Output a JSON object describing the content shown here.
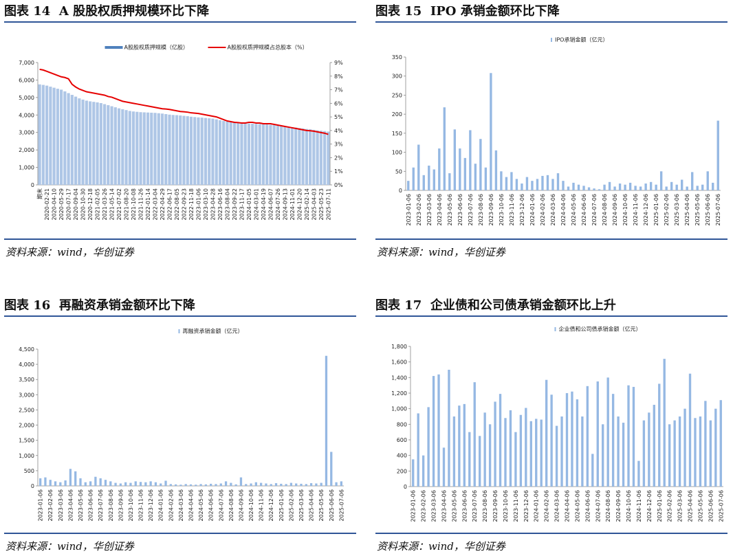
{
  "chart_data": [
    {
      "type": "bar",
      "title": "图表 14  A 股股权质押规模环比下降",
      "source": "资料来源：wind，华创证券",
      "categories": [
        "期末",
        null,
        "2020-02-21",
        null,
        "2020-04-10",
        null,
        "2020-05-29",
        null,
        "2020-07-17",
        null,
        "2020-09-04",
        null,
        "2020-10-30",
        null,
        "2020-12-18",
        null,
        "2021-02-05",
        null,
        "2021-03-26",
        null,
        "2021-05-14",
        null,
        "2021-07-02",
        null,
        "2021-08-20",
        null,
        "2021-10-08",
        null,
        "2021-11-26",
        null,
        "2022-01-14",
        null,
        "2022-03-04",
        null,
        "2022-04-29",
        null,
        "2022-06-17",
        null,
        "2022-08-05",
        null,
        "2022-09-23",
        null,
        "2022-11-18",
        null,
        "2023-01-06",
        null,
        "2023-03-10",
        null,
        "2023-04-28",
        null,
        "2023-06-16",
        null,
        "2023-08-04",
        null,
        "2023-09-22",
        null,
        "2023-11-17",
        null,
        "2024-01-05",
        null,
        "2024-03-01",
        null,
        "2024-04-19",
        null,
        "2024-06-07",
        null,
        "2024-07-26",
        null,
        "2024-09-13",
        null,
        "2024-11-01",
        null,
        "2024-12-20",
        null,
        "2025-02-14",
        null,
        "2025-04-03",
        null,
        "2025-05-23",
        null,
        "2025-07-11"
      ],
      "series": [
        {
          "name": "A股股权质押规模（亿股）",
          "color": "#aec6e6",
          "legend_color": "#4f81bd",
          "values": [
            5750,
            5720,
            5680,
            5620,
            5560,
            5500,
            5450,
            5350,
            5250,
            5150,
            5050,
            4950,
            4880,
            4820,
            4780,
            4750,
            4720,
            4680,
            4620,
            4560,
            4500,
            4440,
            4380,
            4330,
            4280,
            4230,
            4200,
            4180,
            4160,
            4150,
            4140,
            4130,
            4120,
            4100,
            4080,
            4050,
            4020,
            4000,
            3990,
            3970,
            3950,
            3930,
            3900,
            3880,
            3860,
            3850,
            3830,
            3810,
            3790,
            3750,
            3700,
            3660,
            3620,
            3600,
            3580,
            3560,
            3540,
            3520,
            3510,
            3500,
            3490,
            3480,
            3470,
            3460,
            3440,
            3420,
            3400,
            3380,
            3350,
            3320,
            3300,
            3280,
            3250,
            3230,
            3200,
            3180,
            3150,
            3120,
            3100,
            3080,
            3050
          ]
        },
        {
          "name": "A股股权质押规模占总股本（%）",
          "color": "#e60000",
          "kind": "line",
          "axis": "y2",
          "values": [
            8.5,
            8.45,
            8.35,
            8.25,
            8.15,
            8.05,
            7.95,
            7.9,
            7.8,
            7.4,
            7.2,
            7.05,
            6.95,
            6.85,
            6.8,
            6.75,
            6.7,
            6.65,
            6.6,
            6.5,
            6.45,
            6.35,
            6.25,
            6.15,
            6.1,
            6.05,
            6.0,
            5.95,
            5.9,
            5.85,
            5.8,
            5.75,
            5.7,
            5.65,
            5.6,
            5.58,
            5.55,
            5.5,
            5.45,
            5.4,
            5.38,
            5.35,
            5.3,
            5.28,
            5.25,
            5.2,
            5.15,
            5.1,
            5.05,
            5.0,
            4.9,
            4.8,
            4.7,
            4.65,
            4.6,
            4.58,
            4.55,
            4.55,
            4.6,
            4.6,
            4.55,
            4.55,
            4.5,
            4.5,
            4.5,
            4.45,
            4.4,
            4.35,
            4.3,
            4.25,
            4.2,
            4.15,
            4.1,
            4.05,
            4.0,
            3.98,
            3.95,
            3.9,
            3.85,
            3.8,
            3.72
          ]
        }
      ],
      "ylim": [
        0,
        7000
      ],
      "yticks": [
        0,
        {
          "value": 1000,
          "label": "1,000"
        },
        {
          "value": 2000,
          "label": "2,000"
        },
        {
          "value": 3000,
          "label": "3,000"
        },
        {
          "value": 4000,
          "label": "4,000"
        },
        {
          "value": 5000,
          "label": "5,000"
        },
        {
          "value": 6000,
          "label": "6,000"
        },
        {
          "value": 7000,
          "label": "7,000"
        }
      ],
      "y2lim": [
        0,
        9
      ],
      "y2ticks": [
        {
          "value": 0,
          "label": "0%"
        },
        {
          "value": 1,
          "label": "1%"
        },
        {
          "value": 2,
          "label": "2%"
        },
        {
          "value": 3,
          "label": "3%"
        },
        {
          "value": 4,
          "label": "4%"
        },
        {
          "value": 5,
          "label": "5%"
        },
        {
          "value": 6,
          "label": "6%"
        },
        {
          "value": 7,
          "label": "7%"
        },
        {
          "value": 8,
          "label": "8%"
        },
        {
          "value": 9,
          "label": "9%"
        }
      ],
      "legend": "top"
    },
    {
      "type": "bar",
      "title": "图表 15  IPO 承销金额环比下降",
      "source": "资料来源：wind，华创证券",
      "categories": [
        "2023-01-06",
        null,
        "2023-02-06",
        null,
        "2023-03-06",
        null,
        "2023-04-06",
        null,
        "2023-05-06",
        null,
        "2023-06-06",
        null,
        "2023-07-06",
        null,
        "2023-08-06",
        null,
        "2023-09-06",
        null,
        "2023-10-06",
        null,
        "2023-11-06",
        null,
        "2023-12-06",
        null,
        "2024-01-06",
        null,
        "2024-02-06",
        null,
        "2024-03-06",
        null,
        "2024-04-06",
        null,
        "2024-05-06",
        null,
        "2024-06-06",
        null,
        "2024-07-06",
        null,
        "2024-08-06",
        null,
        "2024-09-06",
        null,
        "2024-10-06",
        null,
        "2024-11-06",
        null,
        "2024-12-06",
        null,
        "2025-01-06",
        null,
        "2025-02-06",
        null,
        "2025-03-06",
        null,
        "2025-04-06",
        null,
        "2025-05-06",
        null,
        "2025-06-06",
        null,
        "2025-07-06"
      ],
      "series": [
        {
          "name": "IPO承销金额（亿元）",
          "color": "#95b8e3",
          "values": [
            25,
            60,
            120,
            40,
            65,
            55,
            110,
            218,
            45,
            160,
            110,
            85,
            158,
            70,
            135,
            60,
            308,
            105,
            50,
            35,
            48,
            30,
            18,
            35,
            25,
            30,
            38,
            40,
            30,
            45,
            25,
            10,
            20,
            15,
            12,
            8,
            5,
            3,
            15,
            22,
            10,
            18,
            15,
            20,
            12,
            10,
            18,
            22,
            15,
            50,
            10,
            22,
            15,
            28,
            10,
            48,
            12,
            15,
            50,
            20,
            183
          ]
        }
      ],
      "ylim": [
        0,
        350
      ],
      "yticks": [
        0,
        50,
        100,
        150,
        200,
        250,
        300,
        350
      ],
      "legend": "top"
    },
    {
      "type": "bar",
      "title": "图表 16  再融资承销金额环比下降",
      "source": "资料来源：wind，华创证券",
      "categories": [
        "2023-01-06",
        null,
        "2023-02-06",
        null,
        "2023-03-06",
        null,
        "2023-04-06",
        null,
        "2023-05-06",
        null,
        "2023-06-06",
        null,
        "2023-07-06",
        null,
        "2023-08-06",
        null,
        "2023-09-06",
        null,
        "2023-10-06",
        null,
        "2023-11-06",
        null,
        "2023-12-06",
        null,
        "2024-01-06",
        null,
        "2024-02-06",
        null,
        "2024-03-06",
        null,
        "2024-04-06",
        null,
        "2024-05-06",
        null,
        "2024-06-06",
        null,
        "2024-07-06",
        null,
        "2024-08-06",
        null,
        "2024-09-06",
        null,
        "2024-10-06",
        null,
        "2024-11-06",
        null,
        "2024-12-06",
        null,
        "2025-01-06",
        null,
        "2025-02-06",
        null,
        "2025-03-06",
        null,
        "2025-04-06",
        null,
        "2025-05-06",
        null,
        "2025-06-06",
        null,
        "2025-07-06"
      ],
      "series": [
        {
          "name": "再融资承销金额（亿元）",
          "color": "#95b8e3",
          "values": [
            250,
            280,
            200,
            150,
            120,
            180,
            560,
            480,
            250,
            120,
            150,
            300,
            250,
            200,
            150,
            100,
            80,
            120,
            100,
            150,
            130,
            120,
            150,
            120,
            80,
            170,
            60,
            50,
            40,
            60,
            50,
            40,
            60,
            50,
            70,
            60,
            80,
            150,
            100,
            50,
            280,
            60,
            80,
            120,
            100,
            80,
            60,
            90,
            70,
            60,
            100,
            80,
            70,
            60,
            90,
            80,
            100,
            4280,
            1120,
            120,
            150
          ]
        }
      ],
      "ylim": [
        0,
        4500
      ],
      "yticks": [
        0,
        500,
        {
          "value": 1000,
          "label": "1,000"
        },
        {
          "value": 1500,
          "label": "1,500"
        },
        {
          "value": 2000,
          "label": "2,000"
        },
        {
          "value": 2500,
          "label": "2,500"
        },
        {
          "value": 3000,
          "label": "3,000"
        },
        {
          "value": 3500,
          "label": "3,500"
        },
        {
          "value": 4000,
          "label": "4,000"
        },
        {
          "value": 4500,
          "label": "4,500"
        }
      ],
      "legend": "top"
    },
    {
      "type": "bar",
      "title": "图表 17  企业债和公司债承销金额环比上升",
      "source": "资料来源：wind，华创证券",
      "categories": [
        "2023-01-06",
        null,
        "2023-02-06",
        null,
        "2023-03-06",
        null,
        "2023-04-06",
        null,
        "2023-05-06",
        null,
        "2023-06-06",
        null,
        "2023-07-06",
        null,
        "2023-08-06",
        null,
        "2023-09-06",
        null,
        "2023-10-06",
        null,
        "2023-11-06",
        null,
        "2023-12-06",
        null,
        "2024-01-06",
        null,
        "2024-02-06",
        null,
        "2024-03-06",
        null,
        "2024-04-06",
        null,
        "2024-05-06",
        null,
        "2024-06-06",
        null,
        "2024-07-06",
        null,
        "2024-08-06",
        null,
        "2024-09-06",
        null,
        "2024-10-06",
        null,
        "2024-11-06",
        null,
        "2024-12-06",
        null,
        "2025-01-06",
        null,
        "2025-02-06",
        null,
        "2025-03-06",
        null,
        "2025-04-06",
        null,
        "2025-05-06",
        null,
        "2025-06-06",
        null,
        "2025-07-06"
      ],
      "series": [
        {
          "name": "企业债和公司债承销金额（亿元）",
          "color": "#95b8e3",
          "values": [
            350,
            940,
            400,
            1020,
            1420,
            1440,
            500,
            1500,
            900,
            1040,
            1060,
            700,
            1340,
            650,
            950,
            800,
            1090,
            1190,
            880,
            980,
            700,
            920,
            1010,
            840,
            870,
            860,
            1370,
            1180,
            780,
            900,
            1200,
            1220,
            1120,
            900,
            1290,
            420,
            1350,
            800,
            1400,
            1190,
            900,
            820,
            1300,
            1280,
            330,
            850,
            950,
            1050,
            1320,
            1640,
            800,
            850,
            900,
            1000,
            1450,
            880,
            900,
            1100,
            850,
            1000,
            1110
          ]
        }
      ],
      "ylim": [
        0,
        1800
      ],
      "yticks": [
        0,
        200,
        400,
        600,
        800,
        {
          "value": 1000,
          "label": "1,000"
        },
        {
          "value": 1200,
          "label": "1,200"
        },
        {
          "value": 1400,
          "label": "1,400"
        },
        {
          "value": 1600,
          "label": "1,600"
        },
        {
          "value": 1800,
          "label": "1,800"
        }
      ],
      "legend": "top"
    }
  ]
}
